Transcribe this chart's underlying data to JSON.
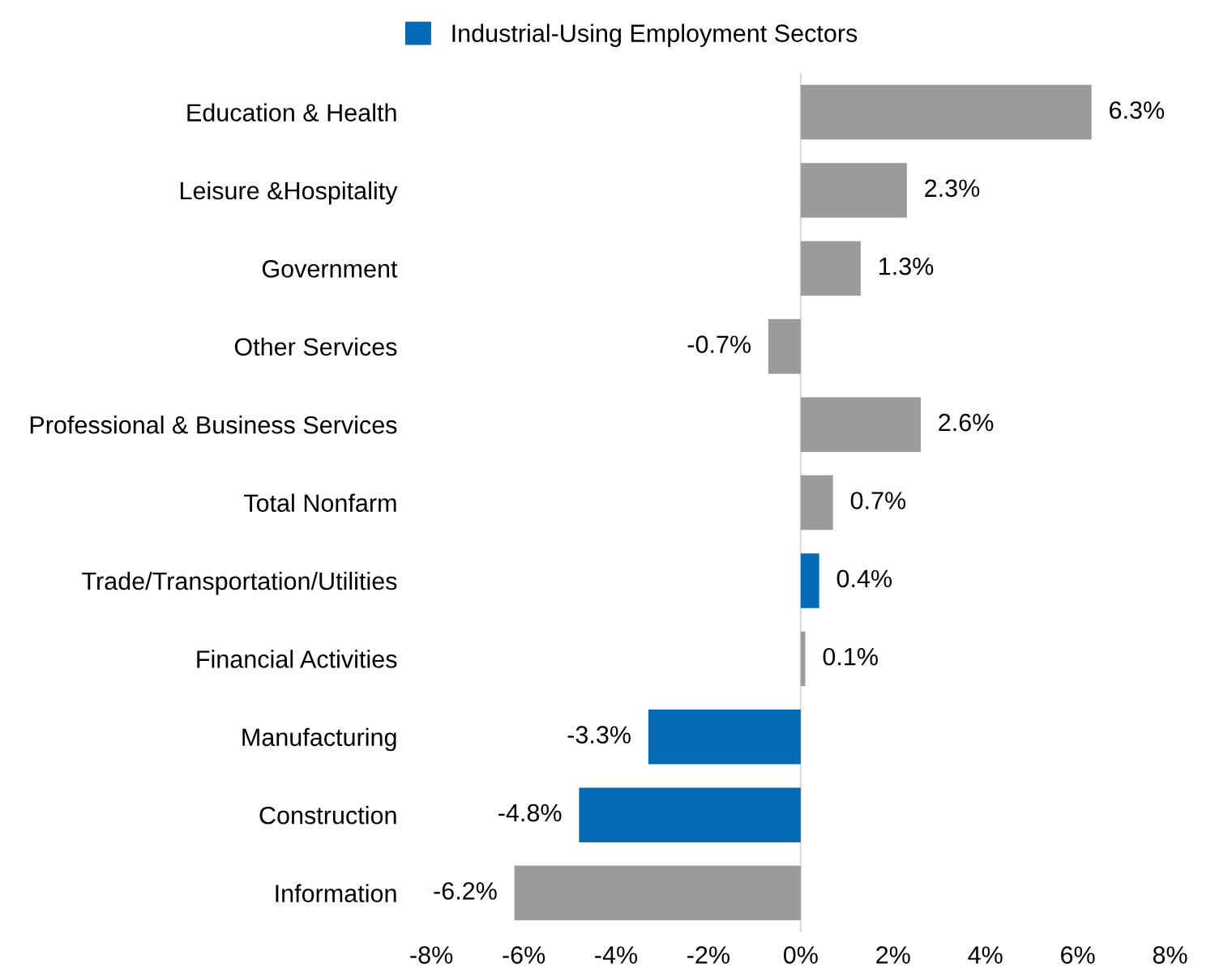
{
  "chart_data": {
    "type": "bar",
    "orientation": "horizontal",
    "categories": [
      "Education & Health",
      "Leisure &Hospitality",
      "Government",
      "Other Services",
      "Professional & Business Services",
      "Total Nonfarm",
      "Trade/Transportation/Utilities",
      "Financial Activities",
      "Manufacturing",
      "Construction",
      "Information"
    ],
    "series": [
      {
        "name": "Industrial-Using Employment Sectors",
        "color": "#046bb4",
        "colors": [
          "#9b9b9b",
          "#9b9b9b",
          "#9b9b9b",
          "#9b9b9b",
          "#9b9b9b",
          "#9b9b9b",
          "#046bb4",
          "#9b9b9b",
          "#046bb4",
          "#046bb4",
          "#9b9b9b"
        ],
        "values": [
          6.3,
          2.3,
          1.3,
          -0.7,
          2.6,
          0.7,
          0.4,
          0.1,
          -3.3,
          -4.8,
          -6.2
        ],
        "value_labels": [
          "6.3%",
          "2.3%",
          "1.3%",
          "-0.7%",
          "2.6%",
          "0.7%",
          "0.4%",
          "0.1%",
          "-3.3%",
          "-4.8%",
          "-6.2%"
        ]
      }
    ],
    "xlim": [
      -8,
      8
    ],
    "xticks": [
      {
        "value": -8,
        "label": "-8%"
      },
      {
        "value": -6,
        "label": "-6%"
      },
      {
        "value": -4,
        "label": "-4%"
      },
      {
        "value": -2,
        "label": "-2%"
      },
      {
        "value": 0,
        "label": "0%"
      },
      {
        "value": 2,
        "label": "2%"
      },
      {
        "value": 4,
        "label": "4%"
      },
      {
        "value": 6,
        "label": "6%"
      },
      {
        "value": 8,
        "label": "8%"
      }
    ],
    "ref_lines": [
      {
        "axis": "x",
        "value": 0,
        "color": "#d9d9d9"
      }
    ],
    "grid": false,
    "legend": "top"
  }
}
